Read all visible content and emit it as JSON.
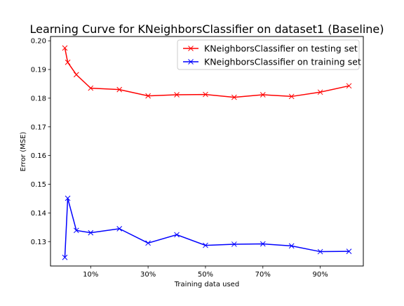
{
  "chart_data": {
    "type": "line",
    "title": "Learning Curve for KNeighborsClassifier on dataset1 (Baseline)",
    "xlabel": "Training data used",
    "ylabel": "Error (MSE)",
    "xlim": [
      -0.04,
      1.05
    ],
    "ylim": [
      0.1215,
      0.2015
    ],
    "xticks": [
      {
        "value": 0.1,
        "label": "10%"
      },
      {
        "value": 0.3,
        "label": "30%"
      },
      {
        "value": 0.5,
        "label": "50%"
      },
      {
        "value": 0.7,
        "label": "70%"
      },
      {
        "value": 0.9,
        "label": "90%"
      }
    ],
    "yticks": [
      {
        "value": 0.13,
        "label": "0.13"
      },
      {
        "value": 0.14,
        "label": "0.14"
      },
      {
        "value": 0.15,
        "label": "0.15"
      },
      {
        "value": 0.16,
        "label": "0.16"
      },
      {
        "value": 0.17,
        "label": "0.17"
      },
      {
        "value": 0.18,
        "label": "0.18"
      },
      {
        "value": 0.19,
        "label": "0.19"
      },
      {
        "value": 0.2,
        "label": "0.20"
      }
    ],
    "grid": false,
    "legend_position": "top-right",
    "x": [
      0.01,
      0.02,
      0.05,
      0.1,
      0.2,
      0.3,
      0.4,
      0.5,
      0.6,
      0.7,
      0.8,
      0.9,
      1.0
    ],
    "series": [
      {
        "name": "KNeighborsClassifier on testing set",
        "color": "#ff0000",
        "marker": "x",
        "values": [
          0.1975,
          0.1925,
          0.1882,
          0.1835,
          0.183,
          0.1808,
          0.1812,
          0.1813,
          0.1803,
          0.1812,
          0.1806,
          0.1821,
          0.1843
        ]
      },
      {
        "name": "KNeighborsClassifier on training set",
        "color": "#0000ff",
        "marker": "x",
        "values": [
          0.1245,
          0.1451,
          0.1339,
          0.1331,
          0.1345,
          0.1295,
          0.1324,
          0.1287,
          0.1291,
          0.1292,
          0.1285,
          0.1265,
          0.1266
        ]
      }
    ]
  }
}
